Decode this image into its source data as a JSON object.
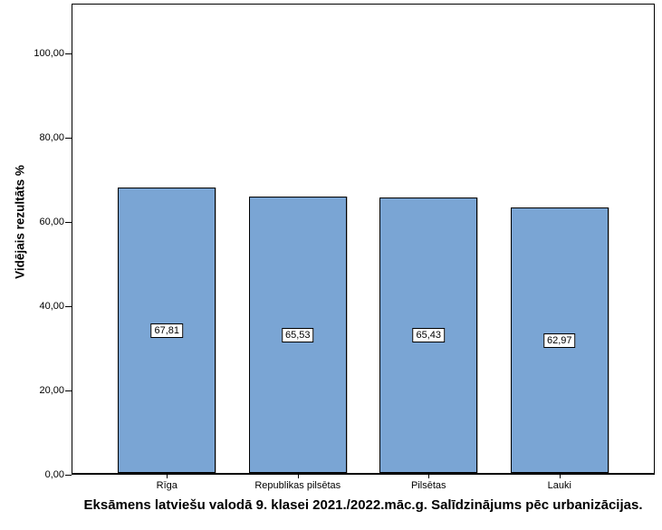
{
  "window": {
    "background": "#ffffff"
  },
  "chart_data": {
    "type": "bar",
    "title": "Eksāmens latviešu valodā 9. klasei 2021./2022.māc.g. Salīdzinājums pēc urbanizācijas.",
    "xlabel": "",
    "ylabel": "Vidējais rezultāts %",
    "categories": [
      "Rīga",
      "Republikas pilsētas",
      "Pilsētas",
      "Lauki"
    ],
    "values": [
      67.81,
      65.53,
      65.43,
      62.97
    ],
    "value_labels": [
      "67,81",
      "65,53",
      "65,43",
      "62,97"
    ],
    "ylim": [
      0,
      100
    ],
    "yticks": [
      {
        "value": 0,
        "label": "0,00"
      },
      {
        "value": 20,
        "label": "20,00"
      },
      {
        "value": 40,
        "label": "40,00"
      },
      {
        "value": 60,
        "label": "60,00"
      },
      {
        "value": 80,
        "label": "80,00"
      },
      {
        "value": 100,
        "label": "100,00"
      }
    ],
    "grid": false,
    "legend_position": "none",
    "bar_color": "#7AA5D4",
    "bar_border_color": "#000000",
    "axis_color": "#000000"
  }
}
